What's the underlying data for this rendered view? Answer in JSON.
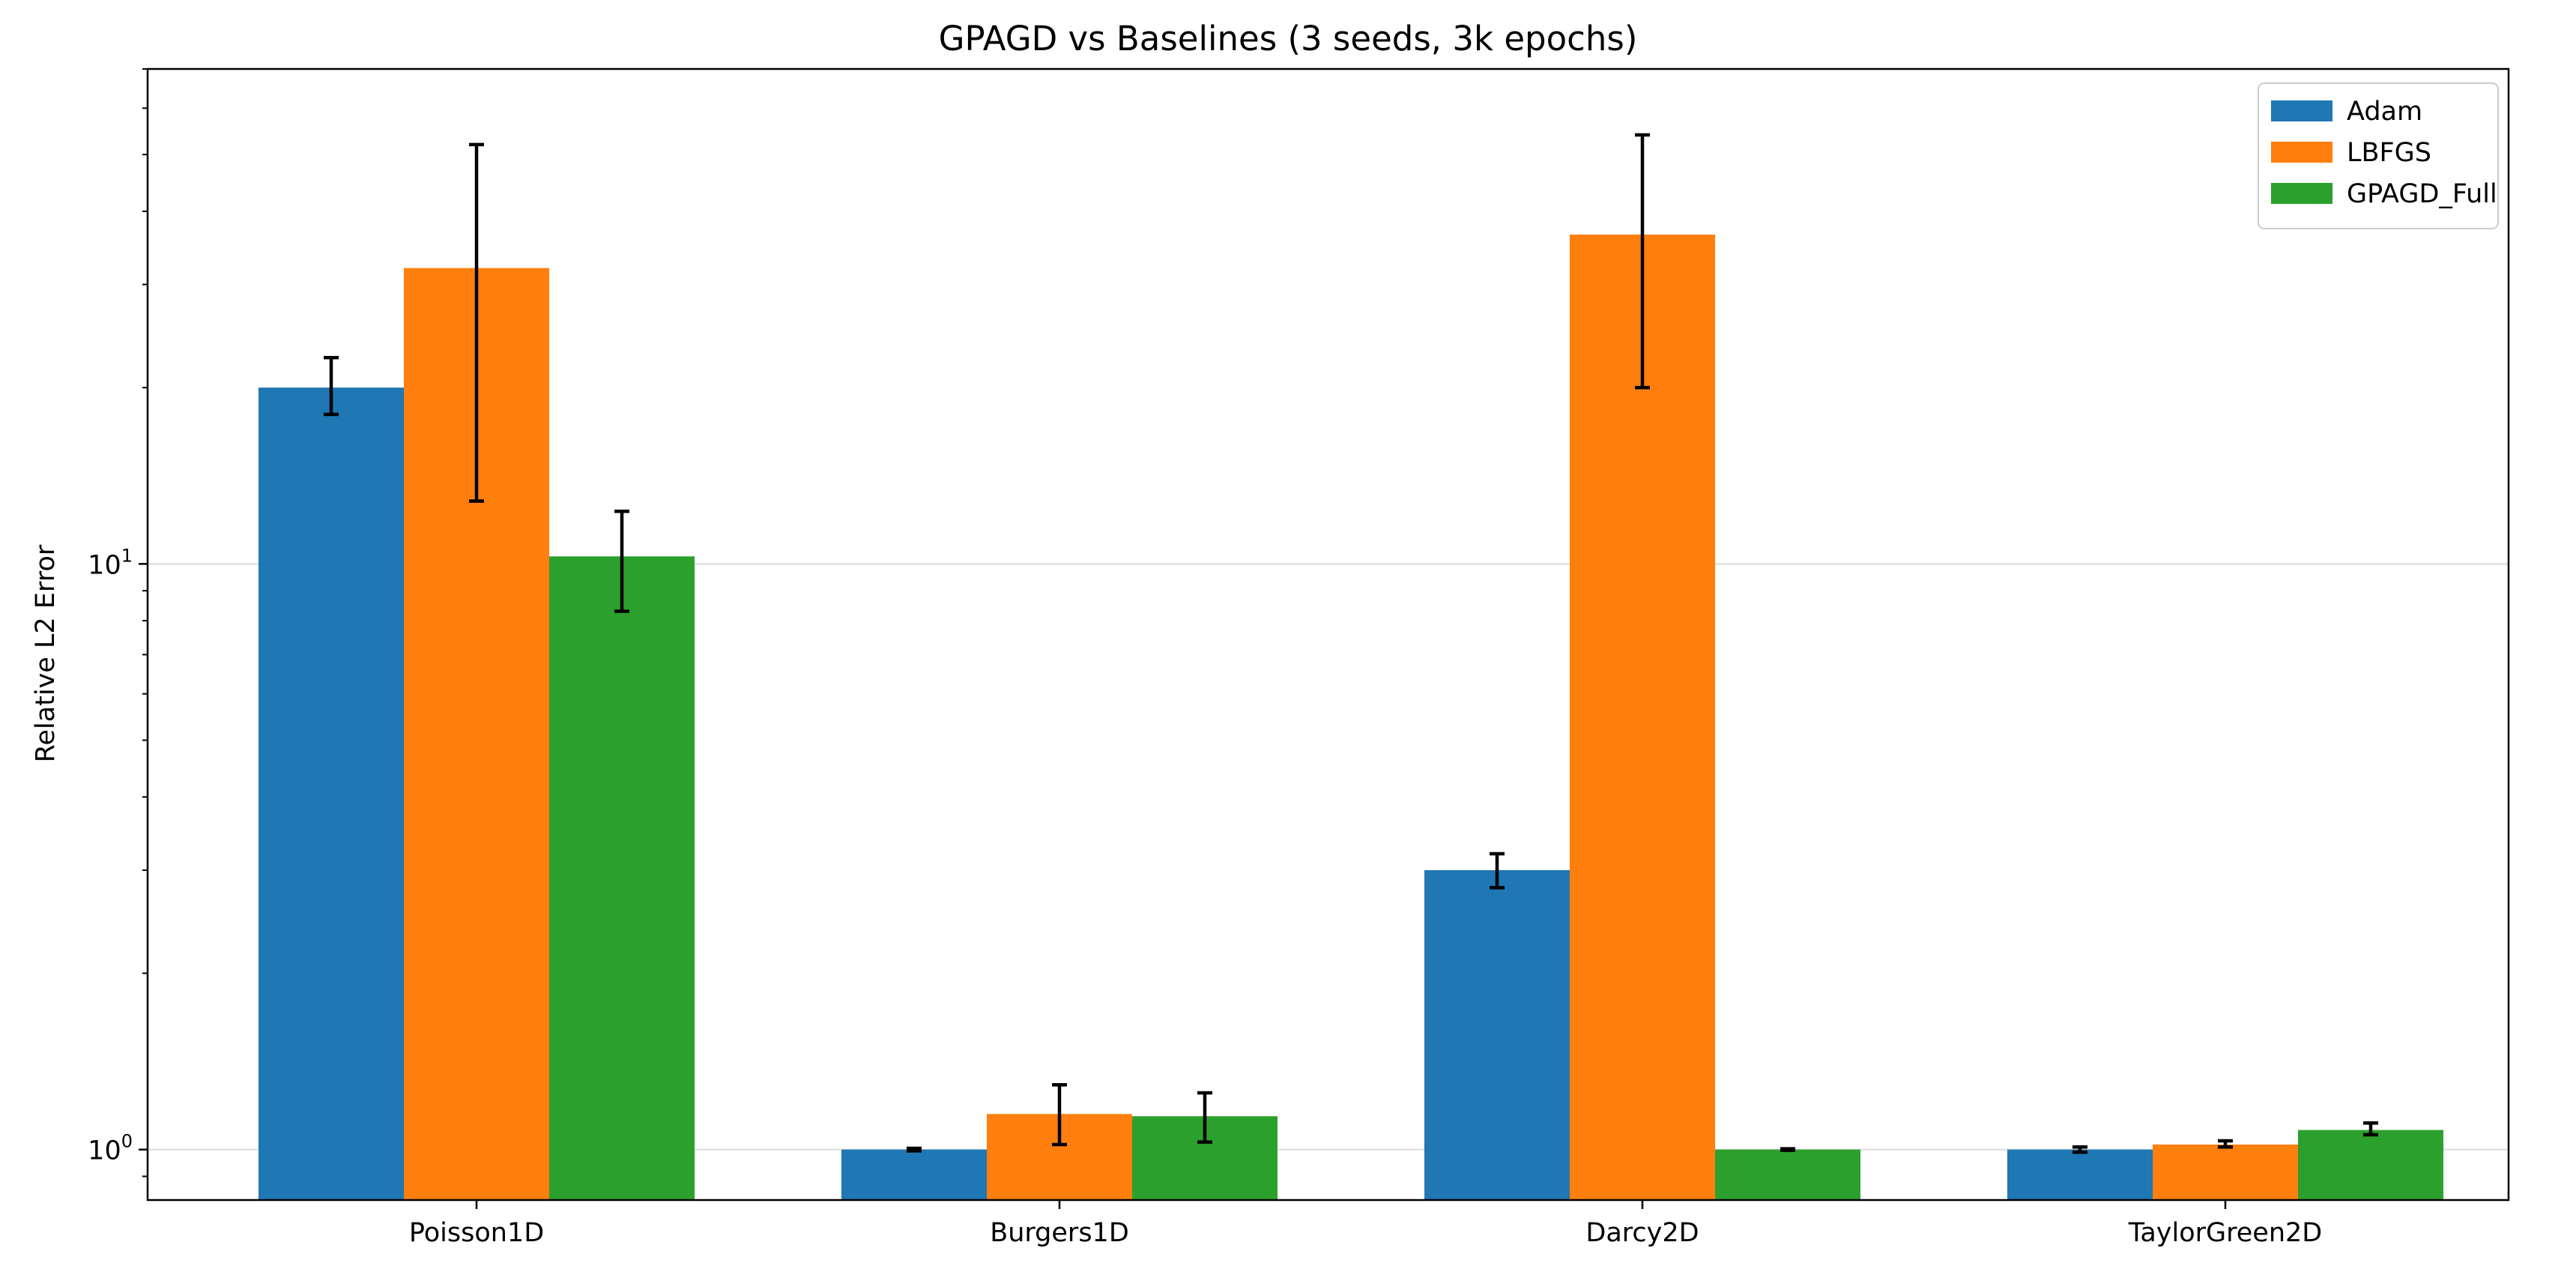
{
  "chart_data": {
    "type": "bar",
    "title": "GPAGD vs Baselines (3 seeds, 3k epochs)",
    "xlabel": "",
    "ylabel": "Relative L2 Error",
    "yscale": "log",
    "ylim": [
      0.82,
      70
    ],
    "y_ticks": [
      {
        "value": 1,
        "label": "10",
        "exponent": "0"
      },
      {
        "value": 10,
        "label": "10",
        "exponent": "1"
      }
    ],
    "grid": "horizontal-major",
    "legend_position": "top-right",
    "categories": [
      "Poisson1D",
      "Burgers1D",
      "Darcy2D",
      "TaylorGreen2D"
    ],
    "series": [
      {
        "name": "Adam",
        "color": "#1f77b4",
        "values": [
          20.0,
          1.0,
          3.0,
          1.0
        ],
        "err_low": [
          18.0,
          0.995,
          2.8,
          0.99
        ],
        "err_high": [
          22.5,
          1.005,
          3.2,
          1.01
        ]
      },
      {
        "name": "LBFGS",
        "color": "#ff7f0e",
        "values": [
          32.0,
          1.15,
          36.5,
          1.02
        ],
        "err_low": [
          12.8,
          1.02,
          20.0,
          1.01
        ],
        "err_high": [
          52.0,
          1.29,
          54.0,
          1.035
        ]
      },
      {
        "name": "GPAGD_Full",
        "color": "#2ca02c",
        "values": [
          10.3,
          1.14,
          1.0,
          1.08
        ],
        "err_low": [
          8.3,
          1.03,
          0.997,
          1.06
        ],
        "err_high": [
          12.3,
          1.25,
          1.003,
          1.11
        ]
      }
    ]
  }
}
